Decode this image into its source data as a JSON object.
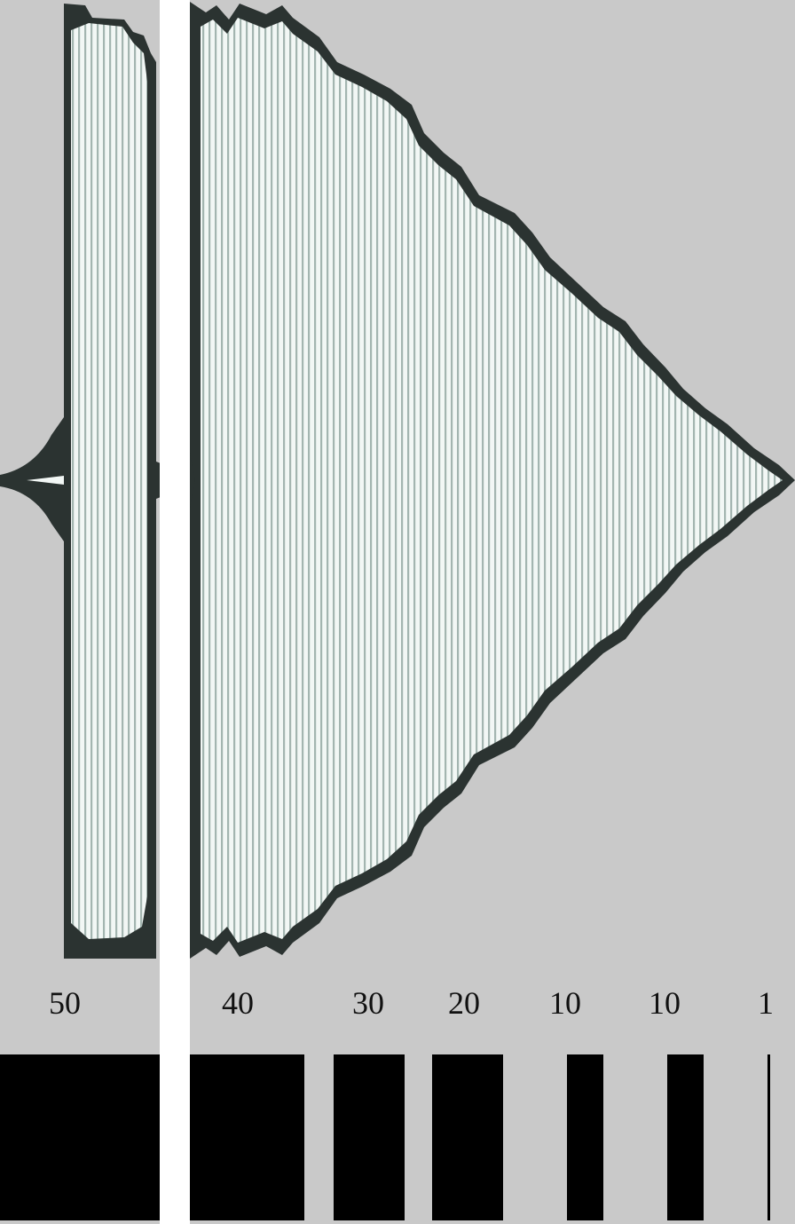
{
  "figure": {
    "colors": {
      "background": "#c9c9c9",
      "envelope": "#2b3331",
      "fill": "#f2f7f5",
      "stripe": "#a3b5b0",
      "bar": "#000000",
      "strip": "#ffffff"
    },
    "scale": {
      "labels": [
        "50",
        "40",
        "30",
        "20",
        "10",
        "10",
        "1"
      ]
    }
  }
}
